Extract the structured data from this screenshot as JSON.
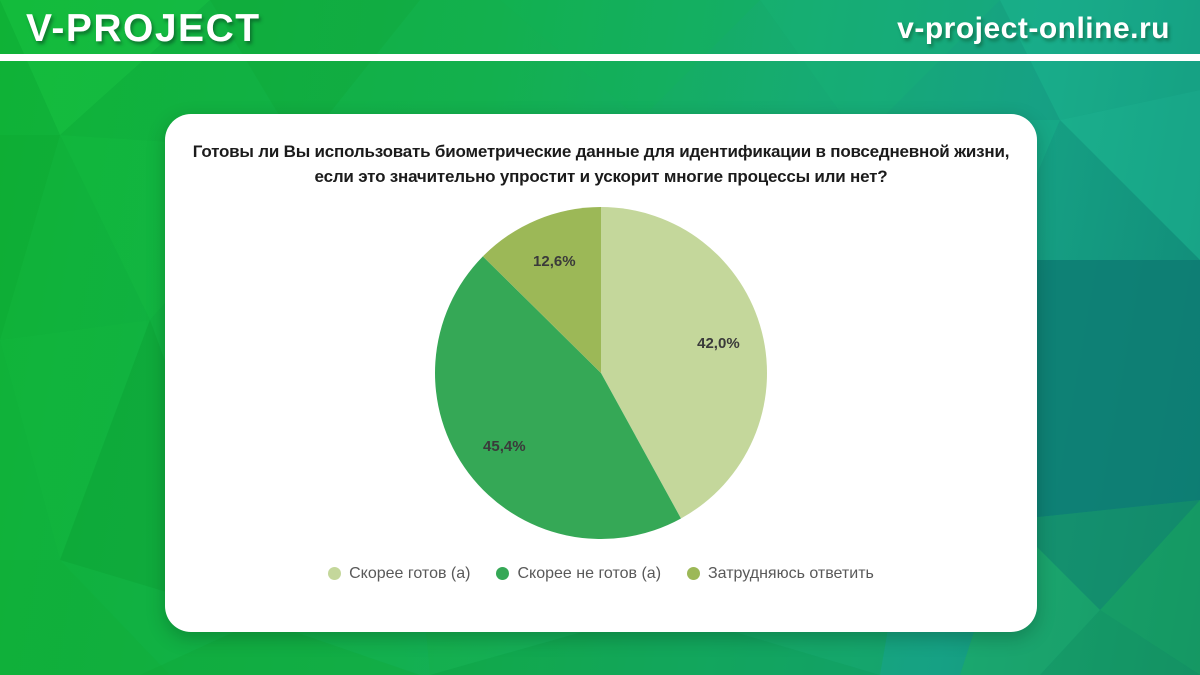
{
  "header": {
    "logo": "V-PROJECT",
    "site": "v-project-online.ru"
  },
  "colors": {
    "brand_green": "#12b43a",
    "brand_teal": "#108877",
    "card_bg": "#ffffff",
    "title_text": "#1b1b1b",
    "label_text": "#3a3a3a",
    "legend_text": "#595959"
  },
  "chart_data": {
    "type": "pie",
    "title": "Готовы ли Вы использовать биометрические данные для идентификации в повседневной жизни, если это значительно упростит и ускорит многие процессы или нет?",
    "labels": [
      "Скорее готов (а)",
      "Скорее не готов (а)",
      "Затрудняюсь ответить"
    ],
    "values": [
      42.0,
      45.4,
      12.6
    ],
    "value_labels": [
      "42,0%",
      "45,4%",
      "12,6%"
    ],
    "colors": [
      "#c4d79b",
      "#35a856",
      "#9cb857"
    ],
    "start_angle_deg": 0,
    "direction": "clockwise",
    "legend_position": "bottom"
  }
}
